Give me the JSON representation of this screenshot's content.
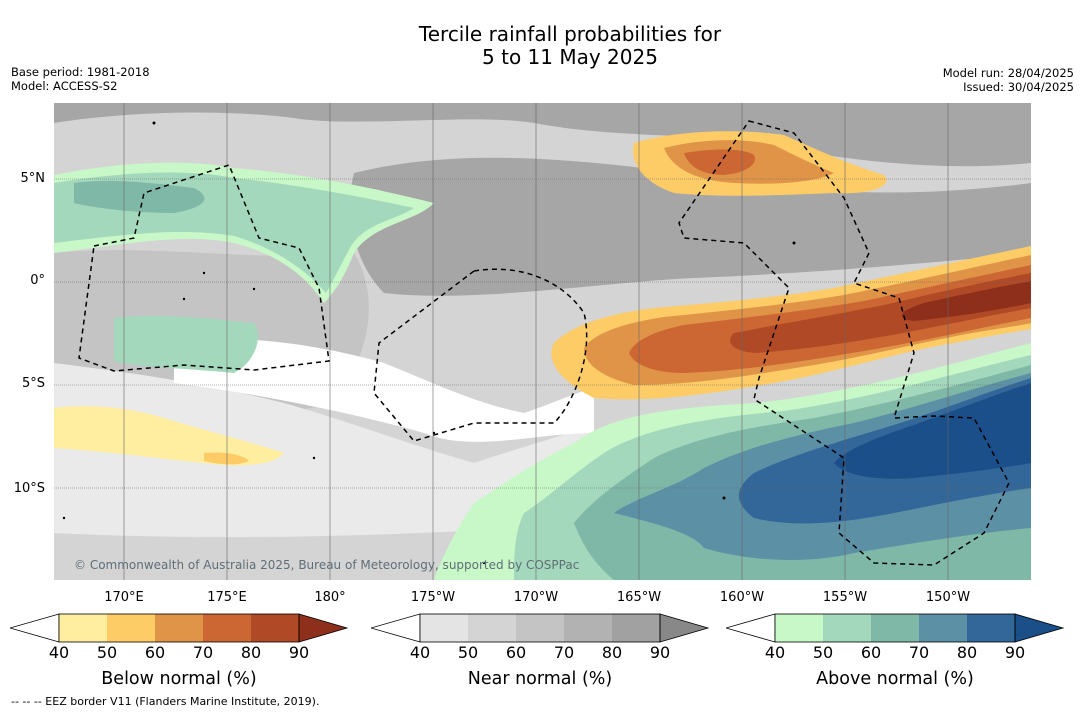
{
  "title_line1": "Tercile rainfall probabilities for",
  "title_line2": "5 to 11 May 2025",
  "base_period": "Base period: 1981-2018",
  "model": "Model: ACCESS-S2",
  "model_run": "Model run: 28/04/2025",
  "issued": "Issued: 30/04/2025",
  "lat_labels": [
    "5°N",
    "0°",
    "5°S",
    "10°S"
  ],
  "lon_labels": [
    "170°E",
    "175°E",
    "180°",
    "175°W",
    "170°W",
    "165°W",
    "160°W",
    "155°W",
    "150°W"
  ],
  "copyright": "© Commonwealth of Australia 2025, Bureau of Meteorology, supported by COSPPac",
  "footer": "--  --  -- EEZ border V11 (Flanders Marine Institute, 2019).",
  "colorbars": [
    {
      "label": "Below normal (%)",
      "ticks": [
        "40",
        "50",
        "60",
        "70",
        "80",
        "90"
      ],
      "colors": [
        "#ffffff",
        "#ffeea0",
        "#fdcc66",
        "#e09448",
        "#cc6633",
        "#b04a26",
        "#8e2f1c"
      ]
    },
    {
      "label": "Near normal (%)",
      "ticks": [
        "40",
        "50",
        "60",
        "70",
        "80",
        "90"
      ],
      "colors": [
        "#ffffff",
        "#e4e4e4",
        "#d4d4d4",
        "#c4c4c4",
        "#b2b2b2",
        "#a1a1a1",
        "#888888"
      ]
    },
    {
      "label": "Above normal (%)",
      "ticks": [
        "40",
        "50",
        "60",
        "70",
        "80",
        "90"
      ],
      "colors": [
        "#ffffff",
        "#c8f8c8",
        "#a4d8bc",
        "#80b8a8",
        "#5c90a4",
        "#336699",
        "#1a4f8a"
      ]
    }
  ]
}
